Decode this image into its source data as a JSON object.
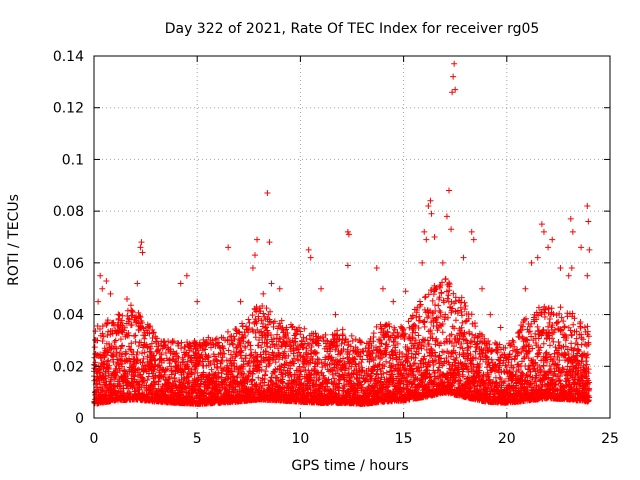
{
  "chart_data": {
    "type": "scatter",
    "title": "Day 322 of 2021, Rate Of TEC Index for receiver rg05",
    "xlabel": "GPS time / hours",
    "ylabel": "ROTI / TECUs",
    "xlim": [
      0,
      25
    ],
    "ylim": [
      0,
      0.14
    ],
    "x_ticks": [
      0,
      5,
      10,
      15,
      20,
      25
    ],
    "x_tick_labels": [
      "0",
      "5",
      "10",
      "15",
      "20",
      "25"
    ],
    "y_ticks": [
      0,
      0.02,
      0.04,
      0.06,
      0.08,
      0.1,
      0.12,
      0.14
    ],
    "y_tick_labels": [
      "0",
      "0.02",
      "0.04",
      "0.06",
      "0.08",
      "0.1",
      "0.12",
      "0.14"
    ],
    "grid": true,
    "marker": "+",
    "marker_color": "#ff0000",
    "series": [
      {
        "name": "ROTI",
        "points": [
          [
            0.1,
            0.03
          ],
          [
            0.2,
            0.045
          ],
          [
            0.3,
            0.055
          ],
          [
            0.4,
            0.05
          ],
          [
            0.6,
            0.053
          ],
          [
            0.8,
            0.048
          ],
          [
            1.6,
            0.046
          ],
          [
            2.1,
            0.052
          ],
          [
            2.25,
            0.066
          ],
          [
            2.3,
            0.068
          ],
          [
            2.35,
            0.064
          ],
          [
            4.2,
            0.052
          ],
          [
            4.5,
            0.055
          ],
          [
            5.0,
            0.045
          ],
          [
            6.5,
            0.066
          ],
          [
            7.1,
            0.045
          ],
          [
            7.7,
            0.058
          ],
          [
            7.8,
            0.063
          ],
          [
            7.9,
            0.069
          ],
          [
            8.2,
            0.048
          ],
          [
            8.4,
            0.087
          ],
          [
            8.5,
            0.068
          ],
          [
            8.6,
            0.052
          ],
          [
            9.0,
            0.05
          ],
          [
            10.4,
            0.065
          ],
          [
            10.5,
            0.062
          ],
          [
            11.0,
            0.05
          ],
          [
            11.7,
            0.04
          ],
          [
            12.3,
            0.072
          ],
          [
            12.35,
            0.071
          ],
          [
            12.3,
            0.059
          ],
          [
            13.7,
            0.058
          ],
          [
            14.0,
            0.05
          ],
          [
            14.5,
            0.045
          ],
          [
            15.1,
            0.049
          ],
          [
            15.9,
            0.06
          ],
          [
            16.0,
            0.072
          ],
          [
            16.1,
            0.069
          ],
          [
            16.2,
            0.082
          ],
          [
            16.3,
            0.084
          ],
          [
            16.35,
            0.079
          ],
          [
            16.5,
            0.07
          ],
          [
            16.9,
            0.06
          ],
          [
            17.1,
            0.078
          ],
          [
            17.2,
            0.088
          ],
          [
            17.3,
            0.073
          ],
          [
            17.35,
            0.126
          ],
          [
            17.4,
            0.132
          ],
          [
            17.45,
            0.137
          ],
          [
            17.5,
            0.127
          ],
          [
            17.9,
            0.062
          ],
          [
            18.3,
            0.072
          ],
          [
            18.4,
            0.069
          ],
          [
            18.8,
            0.05
          ],
          [
            19.2,
            0.04
          ],
          [
            19.7,
            0.035
          ],
          [
            20.9,
            0.05
          ],
          [
            21.2,
            0.06
          ],
          [
            21.5,
            0.062
          ],
          [
            21.7,
            0.075
          ],
          [
            21.8,
            0.072
          ],
          [
            22.0,
            0.066
          ],
          [
            22.2,
            0.069
          ],
          [
            22.6,
            0.058
          ],
          [
            23.0,
            0.055
          ],
          [
            23.1,
            0.077
          ],
          [
            23.2,
            0.072
          ],
          [
            23.15,
            0.058
          ],
          [
            23.6,
            0.066
          ],
          [
            23.9,
            0.082
          ],
          [
            23.95,
            0.076
          ],
          [
            24.0,
            0.065
          ],
          [
            23.9,
            0.055
          ]
        ],
        "baseline": [
          [
            0,
            0.012
          ],
          [
            1,
            0.015
          ],
          [
            2,
            0.016
          ],
          [
            3,
            0.014
          ],
          [
            4,
            0.013
          ],
          [
            5,
            0.012
          ],
          [
            6,
            0.013
          ],
          [
            7,
            0.014
          ],
          [
            8,
            0.016
          ],
          [
            9,
            0.015
          ],
          [
            10,
            0.014
          ],
          [
            11,
            0.013
          ],
          [
            12,
            0.013
          ],
          [
            13,
            0.012
          ],
          [
            14,
            0.014
          ],
          [
            15,
            0.015
          ],
          [
            16,
            0.018
          ],
          [
            17,
            0.022
          ],
          [
            18,
            0.018
          ],
          [
            19,
            0.014
          ],
          [
            20,
            0.013
          ],
          [
            21,
            0.015
          ],
          [
            22,
            0.017
          ],
          [
            23,
            0.016
          ],
          [
            24,
            0.014
          ]
        ],
        "envelope": [
          [
            0,
            0.035
          ],
          [
            1,
            0.04
          ],
          [
            2,
            0.045
          ],
          [
            3,
            0.032
          ],
          [
            4,
            0.03
          ],
          [
            5,
            0.03
          ],
          [
            6,
            0.032
          ],
          [
            7,
            0.035
          ],
          [
            8,
            0.045
          ],
          [
            9,
            0.038
          ],
          [
            10,
            0.036
          ],
          [
            11,
            0.032
          ],
          [
            12,
            0.035
          ],
          [
            13,
            0.03
          ],
          [
            14,
            0.038
          ],
          [
            15,
            0.035
          ],
          [
            16,
            0.048
          ],
          [
            17,
            0.055
          ],
          [
            18,
            0.045
          ],
          [
            19,
            0.03
          ],
          [
            20,
            0.028
          ],
          [
            21,
            0.04
          ],
          [
            22,
            0.045
          ],
          [
            23,
            0.042
          ],
          [
            24,
            0.035
          ]
        ]
      }
    ]
  }
}
